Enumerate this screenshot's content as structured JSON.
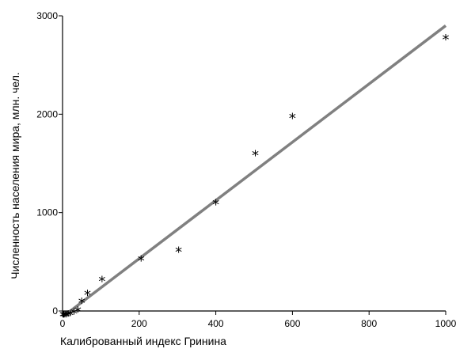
{
  "chart_data": {
    "type": "scatter",
    "title": "",
    "xlabel": "Калиброванный индекс Гринина",
    "ylabel": "Численность населения мира, млн. чел.",
    "xlim": [
      0,
      1000
    ],
    "ylim": [
      0,
      3000
    ],
    "x_ticks": [
      0,
      200,
      400,
      600,
      800,
      1000
    ],
    "y_ticks": [
      0,
      1000,
      2000,
      3000
    ],
    "grid": false,
    "legend": "none",
    "marker": "*",
    "colors": {
      "points": "#000000",
      "trendline": "#808080",
      "axes": "#000000"
    },
    "series": [
      {
        "points": [
          {
            "x": 1,
            "y": -55
          },
          {
            "x": 3,
            "y": -55
          },
          {
            "x": 6,
            "y": -55
          },
          {
            "x": 10,
            "y": -55
          },
          {
            "x": 15,
            "y": -50
          },
          {
            "x": 20,
            "y": -45
          },
          {
            "x": 30,
            "y": -30
          },
          {
            "x": 40,
            "y": -10
          },
          {
            "x": 50,
            "y": 80
          },
          {
            "x": 65,
            "y": 160
          },
          {
            "x": 103,
            "y": 300
          },
          {
            "x": 205,
            "y": 510
          },
          {
            "x": 303,
            "y": 600
          },
          {
            "x": 400,
            "y": 1080
          },
          {
            "x": 503,
            "y": 1580
          },
          {
            "x": 600,
            "y": 1960
          },
          {
            "x": 1000,
            "y": 2760
          }
        ]
      }
    ],
    "trendline": {
      "x": [
        0,
        1000
      ],
      "y": [
        -60,
        2900
      ]
    }
  }
}
